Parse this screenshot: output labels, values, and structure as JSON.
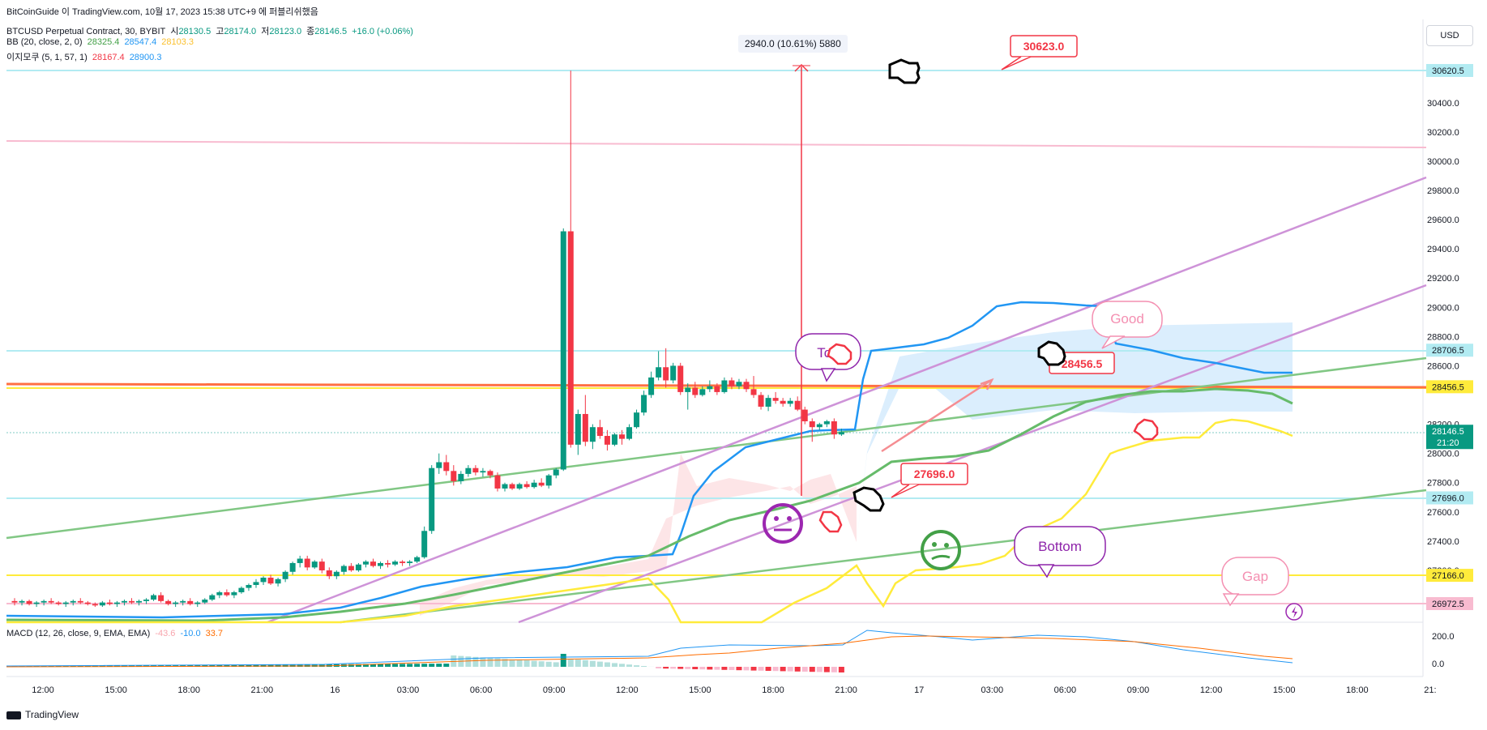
{
  "top_banner": "BitCoinGuide 이 TradingView.com, 10월 17, 2023 15:38 UTC+9 에 퍼블리쉬했음",
  "legend": {
    "symbol": "BTCUSD Perpetual Contract, 30, BYBIT",
    "open_label": "시",
    "open": "28130.5",
    "high_label": "고",
    "high": "28174.0",
    "low_label": "저",
    "low": "28123.0",
    "close_label": "종",
    "close": "28146.5",
    "change": "+16.0 (+0.06%)",
    "bb_label": "BB (20, close, 2, 0)",
    "bb_basis": "28325.4",
    "bb_upper": "28547.4",
    "bb_lower": "28103.3",
    "ichimoku_label": "이지모쿠 (5, 1, 57, 1)",
    "ichimoku_a": "28167.4",
    "ichimoku_b": "28900.3",
    "macd_label": "MACD (12, 26, close, 9, EMA, EMA)",
    "macd_hist": "-43.6",
    "macd_line": "-10.0",
    "macd_signal": "33.7"
  },
  "currency_button": "USD",
  "measure_label": "2940.0 (10.61%) 5880",
  "annotations": {
    "callout_high": "30623.0",
    "callout_mid": "28456.5",
    "callout_low": "27696.0",
    "top": "Top",
    "good": "Good",
    "bottom": "Bottom",
    "gap": "Gap"
  },
  "price_axis": {
    "ticks": [
      "30400.0",
      "30200.0",
      "30000.0",
      "29800.0",
      "29600.0",
      "29400.0",
      "29200.0",
      "29000.0",
      "28800.0",
      "28600.0",
      "28200.0",
      "28000.0",
      "27800.0",
      "27600.0",
      "27400.0",
      "27200.0"
    ],
    "tags": [
      {
        "value": "30620.5",
        "bg": "#b2ebf2",
        "fg": "#131722"
      },
      {
        "value": "28706.5",
        "bg": "#b2ebf2",
        "fg": "#131722"
      },
      {
        "value": "28456.5",
        "bg": "#ffeb3b",
        "fg": "#131722"
      },
      {
        "value": "27696.0",
        "bg": "#b2ebf2",
        "fg": "#131722"
      },
      {
        "value": "27166.0",
        "bg": "#ffeb3b",
        "fg": "#131722"
      },
      {
        "value": "26972.5",
        "bg": "#f8bbd0",
        "fg": "#131722"
      }
    ],
    "current": "28146.5",
    "countdown": "21:20"
  },
  "macd_axis": [
    "200.0",
    "0.0"
  ],
  "time_axis": [
    "12:00",
    "15:00",
    "18:00",
    "21:00",
    "16",
    "03:00",
    "06:00",
    "09:00",
    "12:00",
    "15:00",
    "18:00",
    "21:00",
    "17",
    "03:00",
    "06:00",
    "09:00",
    "12:00",
    "15:00",
    "18:00",
    "21:"
  ],
  "footer": "TradingView",
  "colors": {
    "up": "#089981",
    "down": "#f23645",
    "bb_blue": "#2196f3",
    "bb_green": "#66bb6a",
    "bb_yellow": "#ffeb3b",
    "channel": "#ce93d8",
    "green_line": "#81c784",
    "orange_line": "#ff7043",
    "cyan_line": "#b2ebf2",
    "pink_line": "#f8bbd0"
  },
  "chart_data": {
    "type": "candlestick",
    "timeframe": "30",
    "ylim": [
      26780,
      30720
    ],
    "horizontal_levels": [
      30620.5,
      30090,
      28706.5,
      28456.5,
      27696.0,
      27166.0,
      26972.5
    ],
    "candles": [
      [
        26990,
        27010,
        26960,
        26980
      ],
      [
        26980,
        27000,
        26960,
        26990
      ],
      [
        26990,
        27000,
        26960,
        26970
      ],
      [
        26970,
        26990,
        26950,
        26980
      ],
      [
        26980,
        27000,
        26960,
        26990
      ],
      [
        26990,
        27010,
        26970,
        26980
      ],
      [
        26980,
        26990,
        26960,
        26970
      ],
      [
        26970,
        26990,
        26950,
        26980
      ],
      [
        26980,
        27000,
        26960,
        26990
      ],
      [
        26990,
        27010,
        26970,
        26980
      ],
      [
        26980,
        26990,
        26960,
        26970
      ],
      [
        26970,
        26980,
        26950,
        26960
      ],
      [
        26960,
        26990,
        26950,
        26980
      ],
      [
        26980,
        27000,
        26960,
        26970
      ],
      [
        26970,
        26990,
        26950,
        26980
      ],
      [
        26980,
        27000,
        26960,
        26990
      ],
      [
        26990,
        27010,
        26970,
        26980
      ],
      [
        26980,
        27000,
        26960,
        26990
      ],
      [
        26990,
        27010,
        26970,
        27000
      ],
      [
        27000,
        27040,
        26990,
        27030
      ],
      [
        27030,
        27050,
        26980,
        26990
      ],
      [
        26990,
        27000,
        26960,
        26970
      ],
      [
        26970,
        26990,
        26950,
        26980
      ],
      [
        26980,
        27000,
        26960,
        26990
      ],
      [
        26990,
        27010,
        26960,
        26970
      ],
      [
        26970,
        26990,
        26950,
        26980
      ],
      [
        26980,
        27010,
        26970,
        27000
      ],
      [
        27000,
        27040,
        26990,
        27030
      ],
      [
        27030,
        27060,
        27010,
        27050
      ],
      [
        27050,
        27070,
        27020,
        27030
      ],
      [
        27030,
        27060,
        27010,
        27050
      ],
      [
        27050,
        27090,
        27040,
        27080
      ],
      [
        27080,
        27110,
        27060,
        27100
      ],
      [
        27100,
        27140,
        27080,
        27120
      ],
      [
        27120,
        27160,
        27100,
        27150
      ],
      [
        27150,
        27170,
        27100,
        27110
      ],
      [
        27110,
        27150,
        27090,
        27140
      ],
      [
        27140,
        27200,
        27120,
        27190
      ],
      [
        27190,
        27260,
        27170,
        27250
      ],
      [
        27250,
        27300,
        27220,
        27280
      ],
      [
        27280,
        27300,
        27200,
        27220
      ],
      [
        27220,
        27270,
        27210,
        27260
      ],
      [
        27260,
        27280,
        27180,
        27200
      ],
      [
        27200,
        27220,
        27140,
        27160
      ],
      [
        27160,
        27200,
        27140,
        27190
      ],
      [
        27190,
        27240,
        27170,
        27230
      ],
      [
        27230,
        27250,
        27190,
        27200
      ],
      [
        27200,
        27250,
        27190,
        27240
      ],
      [
        27240,
        27270,
        27220,
        27260
      ],
      [
        27260,
        27280,
        27220,
        27230
      ],
      [
        27230,
        27260,
        27210,
        27250
      ],
      [
        27250,
        27270,
        27220,
        27240
      ],
      [
        27240,
        27270,
        27230,
        27260
      ],
      [
        27260,
        27270,
        27230,
        27250
      ],
      [
        27250,
        27270,
        27230,
        27260
      ],
      [
        27260,
        27300,
        27250,
        27290
      ],
      [
        27290,
        27500,
        27280,
        27470
      ],
      [
        27470,
        27920,
        27450,
        27900
      ],
      [
        27900,
        28000,
        27860,
        27940
      ],
      [
        27940,
        27990,
        27850,
        27880
      ],
      [
        27880,
        27920,
        27780,
        27810
      ],
      [
        27810,
        27880,
        27790,
        27860
      ],
      [
        27860,
        27920,
        27840,
        27900
      ],
      [
        27900,
        27920,
        27850,
        27870
      ],
      [
        27870,
        27900,
        27840,
        27880
      ],
      [
        27880,
        27890,
        27830,
        27850
      ],
      [
        27850,
        27870,
        27740,
        27760
      ],
      [
        27760,
        27800,
        27740,
        27790
      ],
      [
        27790,
        27800,
        27750,
        27760
      ],
      [
        27760,
        27800,
        27750,
        27790
      ],
      [
        27790,
        27810,
        27760,
        27770
      ],
      [
        27770,
        27820,
        27760,
        27800
      ],
      [
        27800,
        27830,
        27770,
        27780
      ],
      [
        27780,
        27860,
        27760,
        27850
      ],
      [
        27850,
        27900,
        27830,
        27890
      ],
      [
        27890,
        29540,
        27880,
        29520
      ],
      [
        29520,
        30620,
        28040,
        28060
      ],
      [
        28060,
        28300,
        27990,
        28270
      ],
      [
        28270,
        28400,
        28050,
        28080
      ],
      [
        28080,
        28200,
        28030,
        28180
      ],
      [
        28180,
        28230,
        28100,
        28120
      ],
      [
        28120,
        28160,
        28020,
        28060
      ],
      [
        28060,
        28140,
        28050,
        28130
      ],
      [
        28130,
        28160,
        28060,
        28100
      ],
      [
        28100,
        28200,
        28090,
        28180
      ],
      [
        28180,
        28300,
        28170,
        28280
      ],
      [
        28280,
        28430,
        28260,
        28400
      ],
      [
        28400,
        28560,
        28380,
        28520
      ],
      [
        28520,
        28700,
        28500,
        28590
      ],
      [
        28590,
        28720,
        28450,
        28500
      ],
      [
        28500,
        28620,
        28480,
        28600
      ],
      [
        28600,
        28620,
        28400,
        28420
      ],
      [
        28420,
        28480,
        28300,
        28450
      ],
      [
        28450,
        28490,
        28380,
        28400
      ],
      [
        28400,
        28460,
        28390,
        28440
      ],
      [
        28440,
        28500,
        28420,
        28460
      ],
      [
        28460,
        28480,
        28400,
        28420
      ],
      [
        28420,
        28520,
        28410,
        28500
      ],
      [
        28500,
        28520,
        28440,
        28460
      ],
      [
        28460,
        28510,
        28440,
        28490
      ],
      [
        28490,
        28510,
        28420,
        28440
      ],
      [
        28440,
        28530,
        28380,
        28400
      ],
      [
        28400,
        28420,
        28300,
        28320
      ],
      [
        28320,
        28400,
        28290,
        28380
      ],
      [
        28380,
        28420,
        28340,
        28360
      ],
      [
        28360,
        28380,
        28320,
        28340
      ],
      [
        28340,
        28380,
        28320,
        28360
      ],
      [
        28360,
        28390,
        28290,
        28300
      ],
      [
        28300,
        28320,
        28200,
        28220
      ],
      [
        28220,
        28240,
        28080,
        28180
      ],
      [
        28180,
        28210,
        28160,
        28200
      ],
      [
        28200,
        28230,
        28180,
        28220
      ],
      [
        28220,
        28240,
        28100,
        28130
      ],
      [
        28130,
        28170,
        28120,
        28146.5
      ]
    ]
  }
}
